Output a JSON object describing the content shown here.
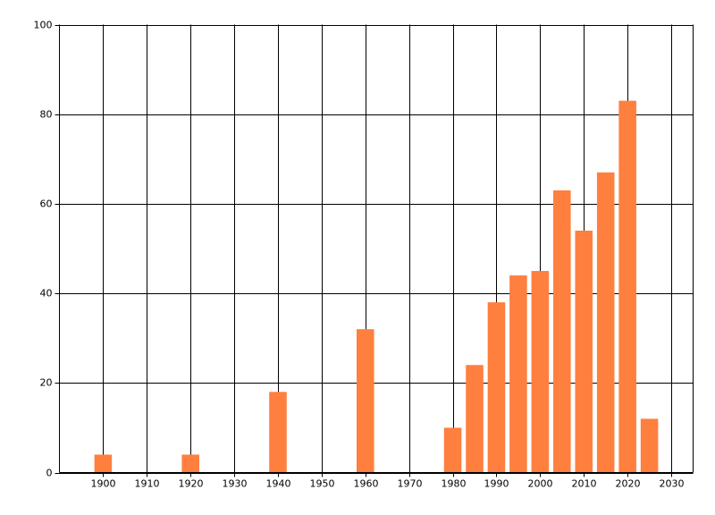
{
  "chart_data": {
    "type": "bar",
    "x": [
      1900,
      1920,
      1940,
      1960,
      1980,
      1985,
      1990,
      1995,
      2000,
      2005,
      2010,
      2015,
      2020,
      2025
    ],
    "values": [
      4,
      4,
      18,
      32,
      10,
      24,
      38,
      44,
      45,
      63,
      54,
      67,
      83,
      12
    ],
    "color": "#ff7f3f",
    "xlim": [
      1890,
      2035
    ],
    "xticks": [
      1900,
      1910,
      1920,
      1930,
      1940,
      1950,
      1960,
      1970,
      1980,
      1990,
      2000,
      2010,
      2020,
      2030
    ],
    "ylim": [
      0,
      100
    ],
    "yticks": [
      0,
      20,
      40,
      60,
      80,
      100
    ],
    "grid": true
  }
}
